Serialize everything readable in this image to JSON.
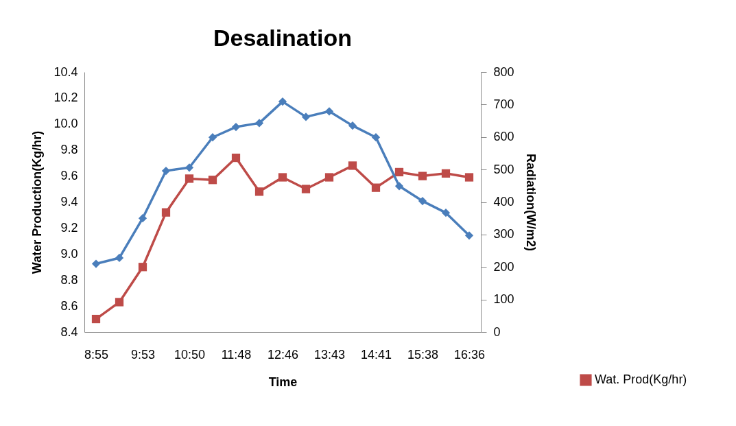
{
  "chart_data": {
    "type": "line",
    "title": "Desalination",
    "xlabel": "Time",
    "ylabel": "Water Production(Kg/hr)",
    "y2label": "Radiation(W/m2)",
    "categories": [
      "8:55",
      null,
      "9:53",
      null,
      "10:50",
      null,
      "11:48",
      null,
      "12:46",
      null,
      "13:43",
      null,
      "14:41",
      null,
      "15:38",
      null,
      "16:36"
    ],
    "series": [
      {
        "name": "Wat. Prod(Kg/hr)",
        "color": "#be4b48",
        "marker": "square",
        "values": [
          8.5,
          8.63,
          8.9,
          9.32,
          9.58,
          9.57,
          9.74,
          9.48,
          9.59,
          9.5,
          9.59,
          9.68,
          9.51,
          9.63,
          9.6,
          9.62,
          9.59
        ]
      },
      {
        "color": "#4a7ebb",
        "axis": "y2",
        "marker": "diamond",
        "values": [
          210,
          228,
          350,
          496,
          506,
          599,
          631,
          643,
          709,
          662,
          679,
          635,
          599,
          449,
          403,
          367,
          297
        ]
      }
    ],
    "ylim": [
      8.4,
      10.4
    ],
    "yticks": [
      8.4,
      8.6,
      8.8,
      {
        "value": 9,
        "label": "9.0"
      },
      9.2,
      9.4,
      9.6,
      9.8,
      {
        "value": 10,
        "label": "10.0"
      },
      10.2,
      10.4
    ],
    "y2lim": [
      0,
      800
    ],
    "y2ticks": [
      0,
      100,
      200,
      300,
      400,
      500,
      600,
      700,
      800
    ],
    "grid": false,
    "legend": "bottom right",
    "line_style": "solid"
  }
}
